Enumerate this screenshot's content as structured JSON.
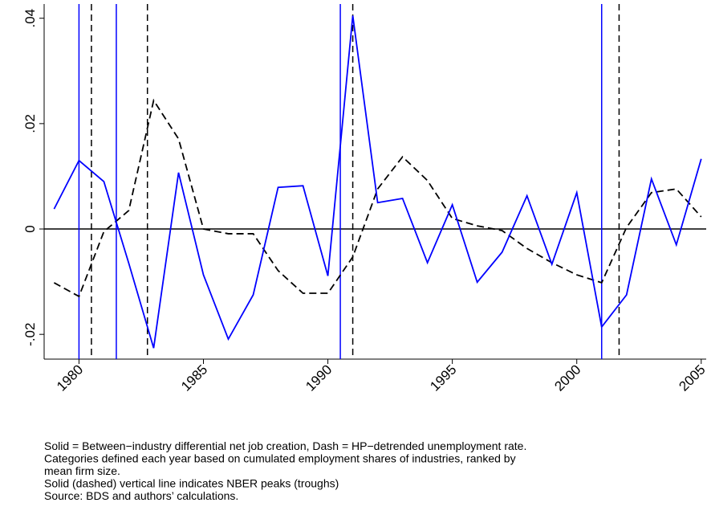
{
  "chart_data": {
    "type": "line",
    "x": [
      1979,
      1980,
      1981,
      1982,
      1983,
      1984,
      1985,
      1986,
      1987,
      1988,
      1989,
      1990,
      1991,
      1992,
      1993,
      1994,
      1995,
      1996,
      1997,
      1998,
      1999,
      2000,
      2001,
      2002,
      2003,
      2004,
      2005
    ],
    "series": [
      {
        "color": "#0000ff",
        "style": "solid",
        "values": [
          0.0038,
          0.013,
          0.009,
          -0.0065,
          -0.0226,
          0.0107,
          -0.0087,
          -0.0209,
          -0.0125,
          0.0079,
          0.0082,
          -0.0089,
          0.0405,
          0.005,
          0.0058,
          -0.0064,
          0.0046,
          -0.0101,
          -0.0044,
          0.0063,
          -0.0067,
          0.0069,
          -0.0186,
          -0.0125,
          0.0095,
          -0.003,
          0.0133
        ]
      },
      {
        "color": "#000000",
        "style": "dashed",
        "values": [
          -0.0102,
          -0.0128,
          -0.0005,
          0.0035,
          0.0244,
          0.0171,
          0,
          -0.0009,
          -0.0009,
          -0.0079,
          -0.0122,
          -0.0122,
          -0.0053,
          0.0076,
          0.0137,
          0.0092,
          0.002,
          0.0006,
          -0.0003,
          -0.0037,
          -0.0064,
          -0.0087,
          -0.0102,
          0.0003,
          0.0069,
          0.0076,
          0.0023
        ]
      }
    ],
    "peaks": [
      1980.0,
      1981.5,
      1990.5,
      2001.0
    ],
    "peak_color": "#0000ff",
    "troughs": [
      1980.5,
      1982.75,
      1991.0,
      2001.7
    ],
    "trough_color": "#000000",
    "reference_line": 0,
    "xlim": [
      1978.6,
      2005.2
    ],
    "xticks": [
      1980,
      1985,
      1990,
      1995,
      2000,
      2005
    ],
    "ylim": [
      -0.0247,
      0.0427
    ],
    "yticks": [
      {
        "value": -0.02,
        "label": "-.02"
      },
      0,
      {
        "value": 0.02,
        "label": ".02"
      },
      {
        "value": 0.04,
        "label": ".04"
      }
    ],
    "notes": [
      "Solid = Between−industry differential net job creation, Dash = HP−detrended unemployment rate.",
      "Categories defined each year based on cumulated employment shares of industries, ranked by",
      "mean firm size.",
      "Solid (dashed) vertical line indicates NBER peaks (troughs)",
      "Source: BDS and authors’ calculations."
    ]
  }
}
